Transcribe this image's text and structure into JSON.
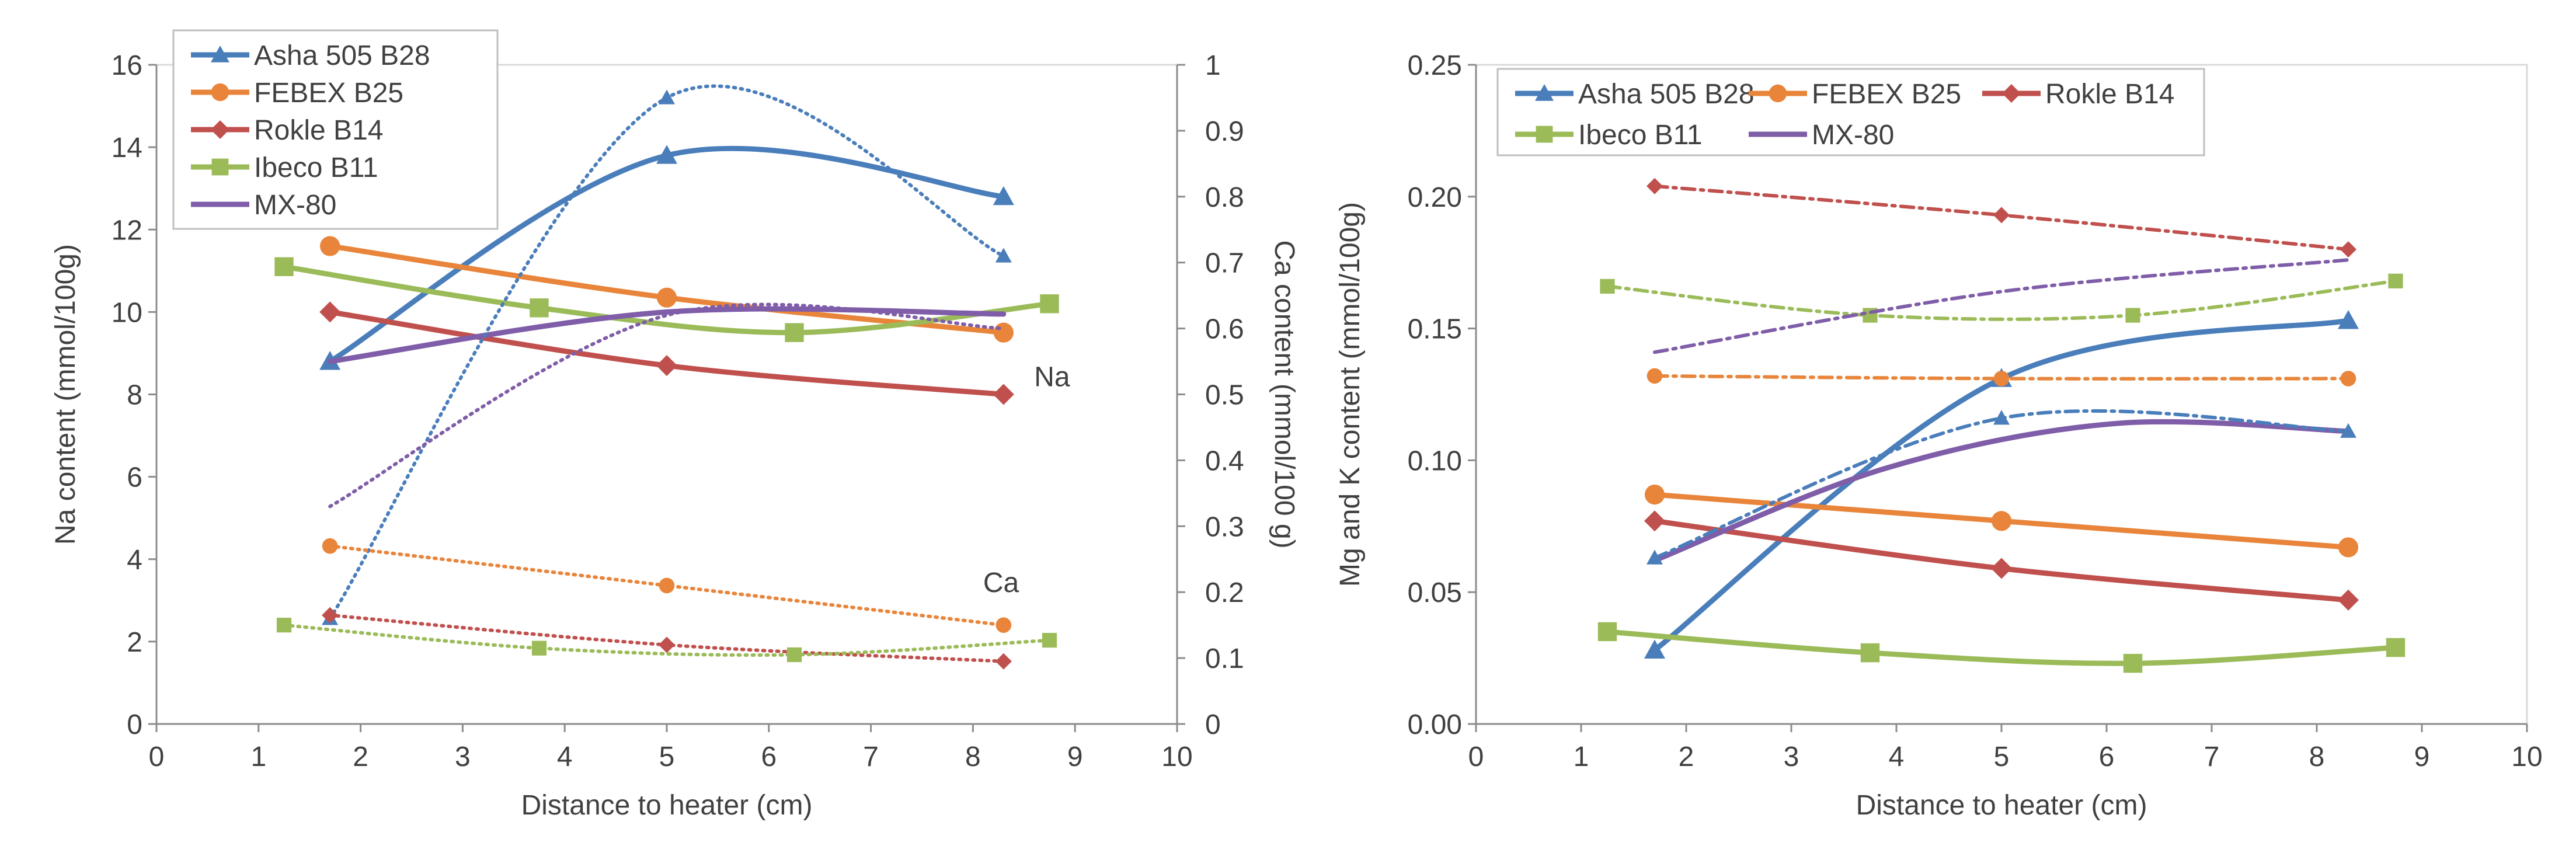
{
  "chart_data": [
    {
      "type": "line",
      "xlabel": "Distance to heater (cm)",
      "ylabel": "Na content (mmol/100g)",
      "y2label": "Ca content (mmol/100 g)",
      "xlim": [
        0,
        10
      ],
      "ylim": [
        0,
        16
      ],
      "y2lim": [
        0,
        1
      ],
      "x_ticks": [
        "0",
        "1",
        "2",
        "3",
        "4",
        "5",
        "6",
        "7",
        "8",
        "9",
        "10"
      ],
      "y_ticks": [
        "0",
        "2",
        "4",
        "6",
        "8",
        "10",
        "12",
        "14",
        "16"
      ],
      "y2_ticks": [
        "0",
        "0.1",
        "0.2",
        "0.3",
        "0.4",
        "0.5",
        "0.6",
        "0.7",
        "0.8",
        "0.9",
        "1"
      ],
      "legend": [
        "Asha 505 B28",
        "FEBEX B25",
        "Rokle B14",
        "Ibeco B11",
        "MX-80"
      ],
      "annotations": [
        "Na",
        "Ca"
      ],
      "series": [
        {
          "name": "Asha 505 B28",
          "element": "Na",
          "axis": "left",
          "style": "solid",
          "marker": "triangle",
          "color": "#4a7ebb",
          "x": [
            1.7,
            5.0,
            8.3
          ],
          "values": [
            8.8,
            13.8,
            12.8
          ]
        },
        {
          "name": "FEBEX B25",
          "element": "Na",
          "axis": "left",
          "style": "solid",
          "marker": "circle",
          "color": "#e8853b",
          "x": [
            1.7,
            5.0,
            8.3
          ],
          "values": [
            11.6,
            10.35,
            9.5
          ]
        },
        {
          "name": "Rokle B14",
          "element": "Na",
          "axis": "left",
          "style": "solid",
          "marker": "diamond",
          "color": "#c0504d",
          "x": [
            1.7,
            5.0,
            8.3
          ],
          "values": [
            10.0,
            8.7,
            8.0
          ]
        },
        {
          "name": "Ibeco B11",
          "element": "Na",
          "axis": "left",
          "style": "solid",
          "marker": "square",
          "color": "#9bbb59",
          "x": [
            1.25,
            3.75,
            6.25,
            8.75
          ],
          "values": [
            11.1,
            10.1,
            9.5,
            10.2
          ]
        },
        {
          "name": "MX-80",
          "element": "Na",
          "axis": "left",
          "style": "solid",
          "marker": "none",
          "color": "#7f5da8",
          "x": [
            1.7,
            5.0,
            8.3
          ],
          "values": [
            8.8,
            10.0,
            9.95
          ]
        },
        {
          "name": "Asha 505 B28",
          "element": "Ca",
          "axis": "right",
          "style": "dotted",
          "marker": "triangle",
          "color": "#4a7ebb",
          "x": [
            1.7,
            5.0,
            8.3
          ],
          "values": [
            0.16,
            0.95,
            0.71
          ]
        },
        {
          "name": "FEBEX B25",
          "element": "Ca",
          "axis": "right",
          "style": "dotted",
          "marker": "circle",
          "color": "#e8853b",
          "x": [
            1.7,
            5.0,
            8.3
          ],
          "values": [
            0.27,
            0.21,
            0.15
          ]
        },
        {
          "name": "Rokle B14",
          "element": "Ca",
          "axis": "right",
          "style": "dotted",
          "marker": "diamond",
          "color": "#c0504d",
          "x": [
            1.7,
            5.0,
            8.3
          ],
          "values": [
            0.165,
            0.12,
            0.095
          ]
        },
        {
          "name": "Ibeco B11",
          "element": "Ca",
          "axis": "right",
          "style": "dotted",
          "marker": "square",
          "color": "#9bbb59",
          "x": [
            1.25,
            3.75,
            6.25,
            8.75
          ],
          "values": [
            0.15,
            0.115,
            0.105,
            0.127
          ]
        },
        {
          "name": "MX-80",
          "element": "Ca",
          "axis": "right",
          "style": "dotted",
          "marker": "none",
          "color": "#7f5da8",
          "x": [
            1.7,
            5.0,
            8.3
          ],
          "values": [
            0.33,
            0.62,
            0.6
          ]
        }
      ]
    },
    {
      "type": "line",
      "xlabel": "Distance to heater (cm)",
      "ylabel": "Mg and K content (mmol/100g)",
      "xlim": [
        0,
        10
      ],
      "ylim": [
        0,
        0.25
      ],
      "x_ticks": [
        "0",
        "1",
        "2",
        "3",
        "4",
        "5",
        "6",
        "7",
        "8",
        "9",
        "10"
      ],
      "y_ticks": [
        "0.00",
        "0.05",
        "0.10",
        "0.15",
        "0.20",
        "0.25"
      ],
      "legend": [
        "Asha 505 B28",
        "FEBEX B25",
        "Rokle B14",
        "Ibeco B11",
        "MX-80"
      ],
      "series": [
        {
          "name": "Asha 505 B28",
          "element": "Mg",
          "style": "solid",
          "marker": "triangle",
          "color": "#4a7ebb",
          "x": [
            1.7,
            5.0,
            8.3
          ],
          "values": [
            0.028,
            0.131,
            0.153
          ]
        },
        {
          "name": "FEBEX B25",
          "element": "Mg",
          "style": "solid",
          "marker": "circle",
          "color": "#e8853b",
          "x": [
            1.7,
            5.0,
            8.3
          ],
          "values": [
            0.087,
            0.077,
            0.067
          ]
        },
        {
          "name": "Rokle B14",
          "element": "Mg",
          "style": "solid",
          "marker": "diamond",
          "color": "#c0504d",
          "x": [
            1.7,
            5.0,
            8.3
          ],
          "values": [
            0.077,
            0.059,
            0.047
          ]
        },
        {
          "name": "Ibeco B11",
          "element": "Mg",
          "style": "solid",
          "marker": "square",
          "color": "#9bbb59",
          "x": [
            1.25,
            3.75,
            6.25,
            8.75
          ],
          "values": [
            0.035,
            0.027,
            0.023,
            0.029
          ]
        },
        {
          "name": "MX-80",
          "element": "Mg",
          "style": "solid",
          "marker": "none",
          "color": "#7f5da8",
          "x": [
            1.7,
            3.9,
            6.1,
            8.3
          ],
          "values": [
            0.062,
            0.097,
            0.114,
            0.111
          ]
        },
        {
          "name": "Asha 505 B28",
          "element": "K",
          "style": "dashdot",
          "marker": "triangle",
          "color": "#4a7ebb",
          "x": [
            1.7,
            5.0,
            8.3
          ],
          "values": [
            0.063,
            0.116,
            0.111
          ]
        },
        {
          "name": "FEBEX B25",
          "element": "K",
          "style": "dashdot",
          "marker": "circle",
          "color": "#e8853b",
          "x": [
            1.7,
            5.0,
            8.3
          ],
          "values": [
            0.132,
            0.131,
            0.131
          ]
        },
        {
          "name": "Rokle B14",
          "element": "K",
          "style": "dashdot",
          "marker": "diamond",
          "color": "#c0504d",
          "x": [
            1.7,
            5.0,
            8.3
          ],
          "values": [
            0.204,
            0.193,
            0.18
          ]
        },
        {
          "name": "Ibeco B11",
          "element": "K",
          "style": "dashdot",
          "marker": "square",
          "color": "#9bbb59",
          "x": [
            1.25,
            3.75,
            6.25,
            8.75
          ],
          "values": [
            0.166,
            0.155,
            0.155,
            0.168
          ]
        },
        {
          "name": "MX-80",
          "element": "K",
          "style": "dashdot",
          "marker": "none",
          "color": "#7f5da8",
          "x": [
            1.7,
            5.0,
            8.3
          ],
          "values": [
            0.141,
            0.164,
            0.176
          ]
        }
      ]
    }
  ]
}
